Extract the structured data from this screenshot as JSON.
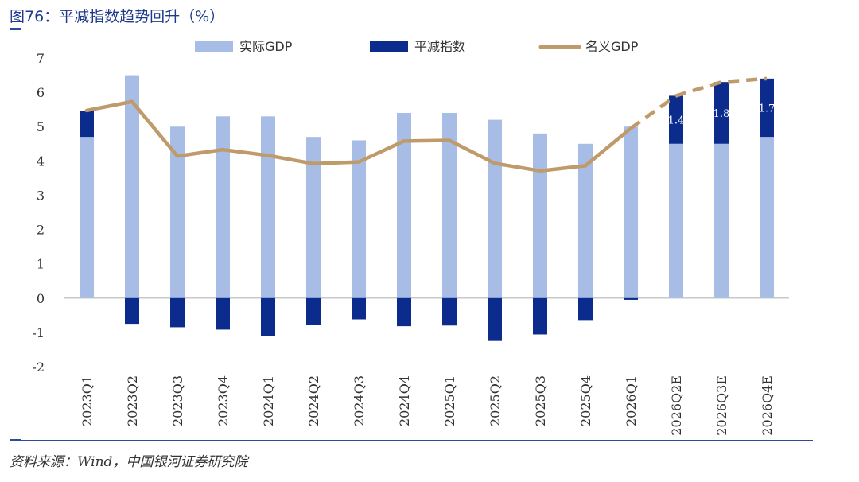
{
  "header": {
    "title": "图76：平减指数趋势回升（%）"
  },
  "footer": {
    "source": "资料来源：Wind，中国银河证券研究院"
  },
  "colors": {
    "real_gdp": "#a8bde6",
    "deflator": "#0b2c8c",
    "nominal": "#bf9a6a",
    "axis": "#c8c8c8"
  },
  "chart_data": {
    "type": "bar",
    "categories": [
      "2023Q1",
      "2023Q2",
      "2023Q3",
      "2023Q4",
      "2024Q1",
      "2024Q2",
      "2024Q3",
      "2024Q4",
      "2025Q1",
      "2025Q2",
      "2025Q3",
      "2025Q4",
      "2026Q1",
      "2026Q2E",
      "2026Q3E",
      "2026Q4E"
    ],
    "ylim": [
      -2,
      7
    ],
    "yticks": [
      -2,
      -1,
      0,
      1,
      2,
      3,
      4,
      5,
      6,
      7
    ],
    "legend": {
      "placement": "top-center"
    },
    "series": [
      {
        "name": "实际GDP",
        "kind": "bar",
        "values": [
          4.7,
          6.5,
          5.0,
          5.3,
          5.3,
          4.7,
          4.6,
          5.4,
          5.4,
          5.2,
          4.8,
          4.5,
          5.0,
          4.5,
          4.5,
          4.7
        ]
      },
      {
        "name": "平减指数",
        "kind": "stacked-bar",
        "values": [
          0.75,
          -0.75,
          -0.85,
          -0.92,
          -1.1,
          -0.78,
          -0.62,
          -0.82,
          -0.8,
          -1.25,
          -1.06,
          -0.64,
          -0.05,
          1.4,
          1.8,
          1.7
        ]
      },
      {
        "name": "名义GDP",
        "kind": "line",
        "values": [
          5.47,
          5.73,
          4.14,
          4.33,
          4.16,
          3.92,
          3.97,
          4.58,
          4.6,
          3.93,
          3.71,
          3.86,
          4.95,
          5.9,
          6.3,
          6.4
        ],
        "dashed_from_index": 12
      }
    ],
    "data_labels": [
      {
        "index": 13,
        "text": "1.4"
      },
      {
        "index": 14,
        "text": "1.8"
      },
      {
        "index": 15,
        "text": "1.7"
      }
    ]
  }
}
